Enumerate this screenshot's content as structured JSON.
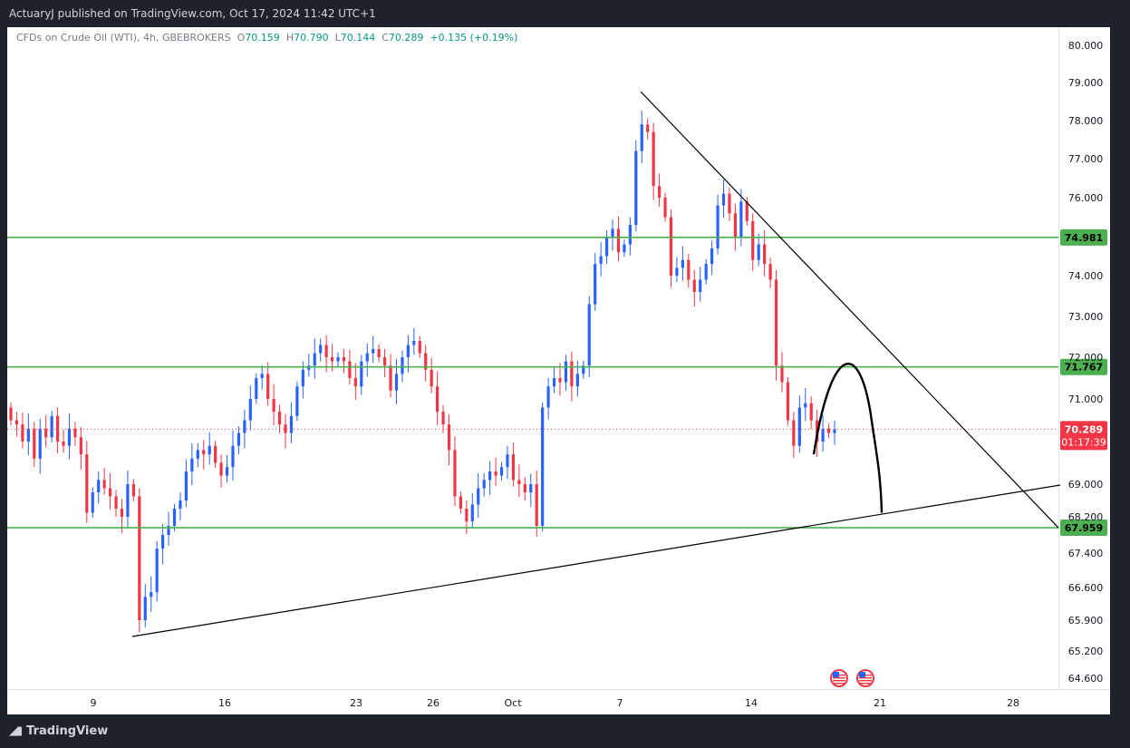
{
  "header": {
    "published_text": "ActuaryJ published on TradingView.com, Oct 17, 2024 11:42 UTC+1"
  },
  "legend": {
    "symbol": "CFDs on Crude Oil (WTI), 4h, GBEBROKERS",
    "o_label": "O",
    "o_value": "70.159",
    "h_label": "H",
    "h_value": "70.790",
    "l_label": "L",
    "l_value": "70.144",
    "c_label": "C",
    "c_value": "70.289",
    "change": "+0.135 (+0.19%)"
  },
  "footer": {
    "brand": "TradingView",
    "brand_icon": "tradingview-logo-icon"
  },
  "colors": {
    "up": "#2962ff",
    "down": "#f23645",
    "level_line": "#4caf50",
    "level_label_bg": "#4caf50",
    "price_label_bg": "#f23645",
    "trendline": "#000000"
  },
  "chart_data": {
    "type": "candlestick",
    "symbol": "CFDs on Crude Oil (WTI)",
    "timeframe": "4h",
    "y_ticks": [
      "80.000",
      "79.000",
      "78.000",
      "77.000",
      "76.000",
      "74.000",
      "73.000",
      "72.000",
      "71.000",
      "69.000",
      "68.200",
      "67.400",
      "66.600",
      "65.900",
      "65.200",
      "64.600"
    ],
    "x_ticks": [
      "9",
      "16",
      "23",
      "26",
      "Oct",
      "7",
      "14",
      "21",
      "28"
    ],
    "horizontal_levels": [
      {
        "value": 74.981,
        "label": "74.981"
      },
      {
        "value": 71.767,
        "label": "71.767"
      },
      {
        "value": 67.959,
        "label": "67.959"
      }
    ],
    "last_price": {
      "value": 70.289,
      "label": "70.289",
      "countdown": "01:17:39"
    },
    "ohlc_last": {
      "open": 70.159,
      "high": 70.79,
      "low": 70.144,
      "close": 70.289
    },
    "trendlines": [
      {
        "name": "descending",
        "from": {
          "date": "Oct 8",
          "price": 78.85
        },
        "to": {
          "date": "Oct 28",
          "price": 67.959
        }
      },
      {
        "name": "ascending",
        "from": {
          "date": "Sep 10",
          "price": 65.55
        },
        "to": {
          "date": "Oct 29",
          "price": 68.95
        }
      }
    ],
    "projection_curve": {
      "from_price": 69.7,
      "peak_price": 71.767,
      "to_price": 68.3
    },
    "event_markers": [
      "us-flag-icon",
      "us-flag-icon"
    ],
    "closes_approx": [
      70.5,
      70.4,
      70.0,
      70.3,
      69.6,
      70.3,
      70.1,
      70.6,
      70.0,
      69.9,
      70.3,
      70.1,
      69.7,
      68.3,
      68.8,
      69.1,
      68.9,
      68.7,
      68.4,
      68.2,
      69.0,
      68.7,
      65.9,
      66.4,
      66.5,
      67.5,
      67.8,
      68.0,
      68.4,
      68.6,
      69.3,
      69.6,
      69.8,
      69.7,
      69.9,
      69.5,
      69.2,
      69.4,
      69.9,
      70.2,
      70.5,
      71.0,
      71.5,
      71.6,
      71.0,
      70.7,
      70.4,
      70.2,
      70.6,
      71.3,
      71.7,
      71.8,
      72.1,
      72.3,
      72.0,
      71.9,
      72.0,
      71.9,
      71.5,
      71.3,
      71.9,
      72.1,
      72.2,
      72.0,
      71.8,
      71.2,
      71.6,
      72.0,
      72.3,
      72.4,
      72.1,
      71.7,
      71.3,
      70.7,
      70.4,
      69.8,
      68.7,
      68.4,
      68.1,
      68.5,
      68.9,
      69.1,
      69.3,
      69.2,
      69.4,
      69.7,
      69.1,
      69.0,
      68.8,
      69.0,
      68.0,
      70.8,
      71.3,
      71.5,
      71.4,
      71.9,
      71.3,
      71.6,
      71.8,
      73.3,
      74.3,
      74.5,
      75.0,
      75.2,
      74.6,
      74.8,
      75.3,
      77.2,
      77.9,
      77.7,
      76.3,
      76.0,
      75.5,
      74.0,
      74.2,
      74.4,
      73.9,
      73.6,
      73.9,
      74.3,
      74.7,
      75.8,
      76.1,
      75.6,
      75.0,
      75.9,
      75.4,
      74.4,
      74.8,
      74.3,
      73.9,
      71.8,
      71.4,
      70.5,
      69.9,
      70.8,
      70.9,
      70.5,
      70.0,
      70.3,
      70.2,
      70.289
    ]
  }
}
